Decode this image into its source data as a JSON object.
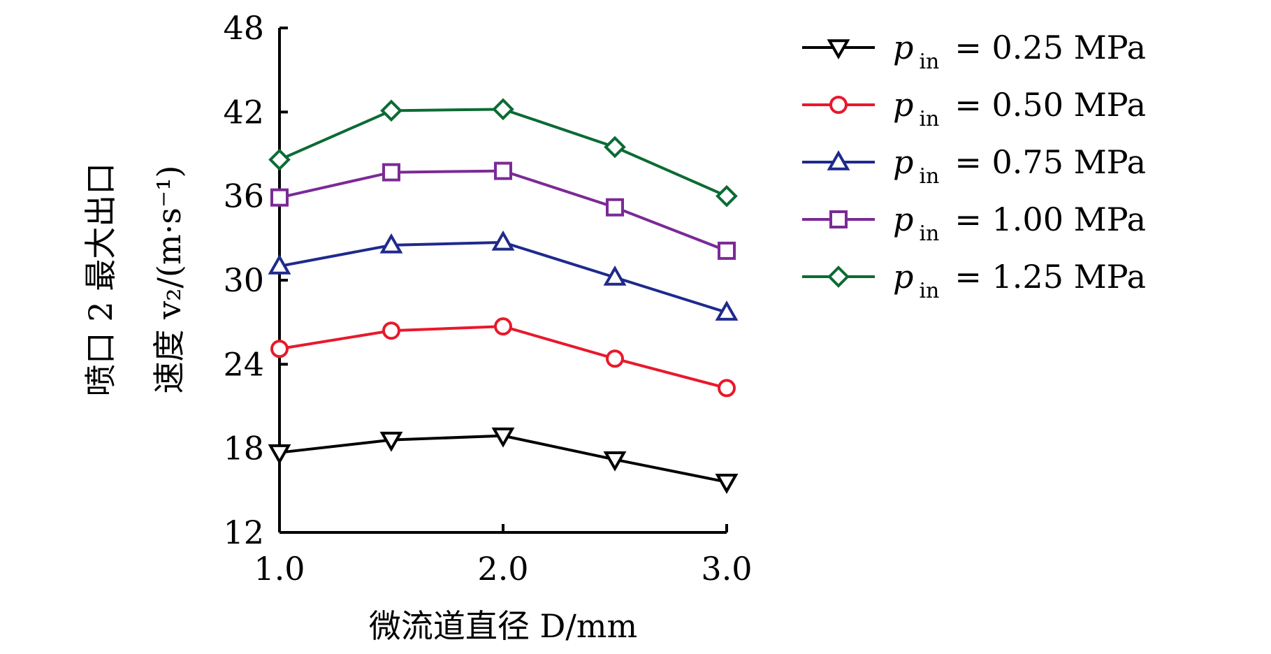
{
  "chart_data": {
    "type": "line",
    "title": "",
    "xlabel": "微流道直径 D/mm",
    "ylabel_line1": "喷口 2 最大出口",
    "ylabel_line2": "速度 v₂/(m·s⁻¹)",
    "xlim": [
      1.0,
      3.0
    ],
    "ylim": [
      12,
      48
    ],
    "xticks": [
      "1.0",
      "2.0",
      "3.0"
    ],
    "xtick_values": [
      1.0,
      2.0,
      3.0
    ],
    "yticks": [
      "12",
      "18",
      "24",
      "30",
      "36",
      "42",
      "48"
    ],
    "ytick_values": [
      12,
      18,
      24,
      30,
      36,
      42,
      48
    ],
    "x": [
      1.0,
      1.5,
      2.0,
      2.5,
      3.0
    ],
    "legend_position": "top-right",
    "series": [
      {
        "name": "p_in = 0.25 MPa",
        "label_var": "p",
        "label_sub": "in",
        "label_rest": "= 0.25 MPa",
        "marker": "triangle-down",
        "color": "#000000",
        "values": [
          17.7,
          18.6,
          18.9,
          17.2,
          15.6
        ]
      },
      {
        "name": "p_in = 0.50 MPa",
        "label_var": "p",
        "label_sub": "in",
        "label_rest": "= 0.50 MPa",
        "marker": "circle",
        "color": "#e8192c",
        "values": [
          25.1,
          26.4,
          26.7,
          24.4,
          22.3
        ]
      },
      {
        "name": "p_in = 0.75 MPa",
        "label_var": "p",
        "label_sub": "in",
        "label_rest": "= 0.75 MPa",
        "marker": "triangle-up",
        "color": "#1e2a8c",
        "values": [
          31.0,
          32.5,
          32.7,
          30.2,
          27.7
        ]
      },
      {
        "name": "p_in = 1.00 MPa",
        "label_var": "p",
        "label_sub": "in",
        "label_rest": "= 1.00 MPa",
        "marker": "square",
        "color": "#7b2a96",
        "values": [
          35.9,
          37.7,
          37.8,
          35.2,
          32.1
        ]
      },
      {
        "name": "p_in = 1.25 MPa",
        "label_var": "p",
        "label_sub": "in",
        "label_rest": "= 1.25 MPa",
        "marker": "diamond",
        "color": "#0b6b34",
        "values": [
          38.6,
          42.1,
          42.2,
          39.5,
          36.0
        ]
      }
    ]
  }
}
